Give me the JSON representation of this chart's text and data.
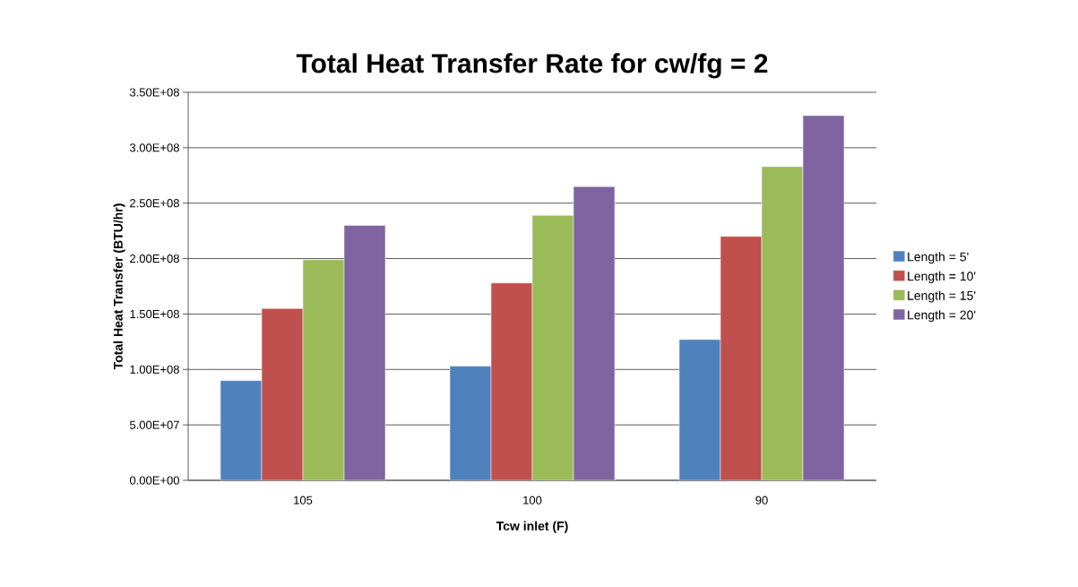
{
  "chart_data": {
    "type": "bar",
    "title": "Total Heat Transfer Rate for cw/fg = 2",
    "xlabel": "Tcw inlet (F)",
    "ylabel": "Total Heat Transfer (BTU/hr)",
    "categories": [
      "105",
      "100",
      "90"
    ],
    "series": [
      {
        "name": "Length = 5'",
        "color": "#4f81bd",
        "values": [
          90000000,
          103000000,
          127000000
        ]
      },
      {
        "name": "Length = 10'",
        "color": "#c0504d",
        "values": [
          155000000,
          178000000,
          220000000
        ]
      },
      {
        "name": "Length = 15'",
        "color": "#9bbb59",
        "values": [
          199000000,
          239000000,
          283000000
        ]
      },
      {
        "name": "Length = 20'",
        "color": "#8064a2",
        "values": [
          230000000,
          265000000,
          329000000
        ]
      }
    ],
    "ylim": [
      0,
      350000000
    ],
    "yticks": [
      {
        "value": 0,
        "label": "0.00E+00"
      },
      {
        "value": 50000000,
        "label": "5.00E+07"
      },
      {
        "value": 100000000,
        "label": "1.00E+08"
      },
      {
        "value": 150000000,
        "label": "1.50E+08"
      },
      {
        "value": 200000000,
        "label": "2.00E+08"
      },
      {
        "value": 250000000,
        "label": "2.50E+08"
      },
      {
        "value": 300000000,
        "label": "3.00E+08"
      },
      {
        "value": 350000000,
        "label": "3.50E+08"
      }
    ],
    "grid": "y",
    "legend": "right"
  }
}
